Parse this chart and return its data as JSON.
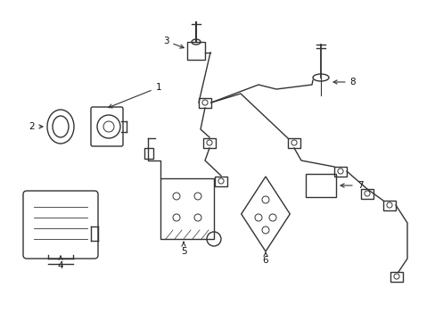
{
  "bg_color": "#ffffff",
  "line_color": "#333333",
  "line_width": 1.0,
  "label_color": "#111111",
  "label_fontsize": 7.5
}
